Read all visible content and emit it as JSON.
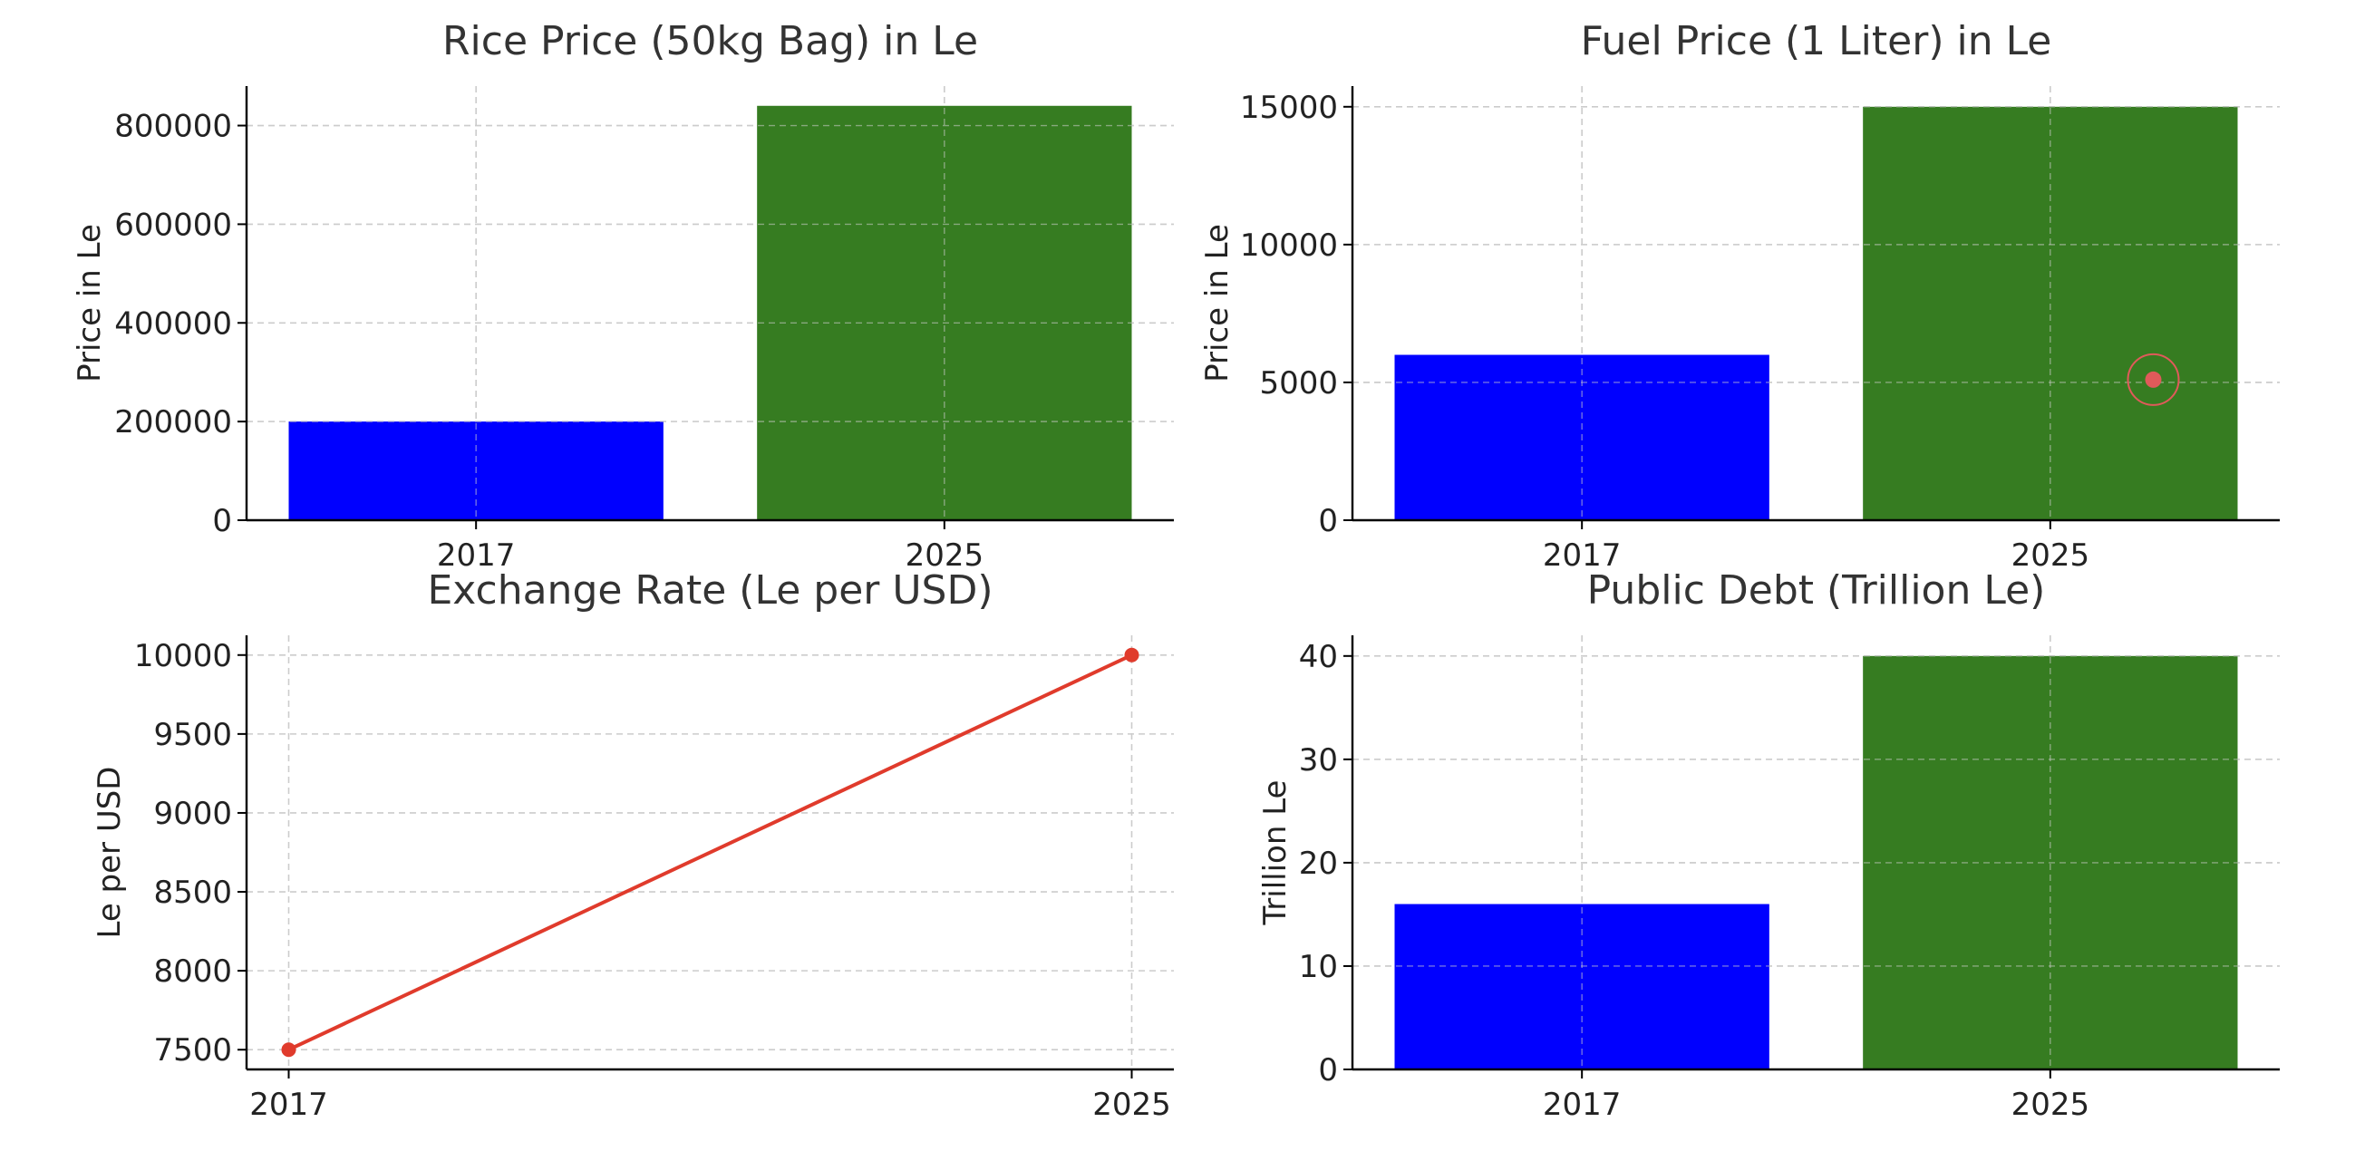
{
  "figure": {
    "background": "#ffffff",
    "grid": true,
    "grid_color": "#cccccc",
    "axis_color": "#000000"
  },
  "chart_data": [
    {
      "type": "bar",
      "title": "Rice Price (50kg Bag) in Le",
      "xlabel": "",
      "ylabel": "Price in Le",
      "categories": [
        "2017",
        "2025"
      ],
      "values": [
        200000,
        840000
      ],
      "colors": [
        "#0000ff",
        "#367c21"
      ],
      "ylim": [
        0,
        880000
      ],
      "yticks": [
        0,
        200000,
        400000,
        600000,
        800000
      ],
      "ytick_labels": [
        "0",
        "200000",
        "400000",
        "600000",
        "800000"
      ],
      "grid": true
    },
    {
      "type": "bar",
      "title": "Fuel Price (1 Liter) in Le",
      "xlabel": "",
      "ylabel": "Price in Le",
      "categories": [
        "2017",
        "2025"
      ],
      "values": [
        6000,
        15000
      ],
      "colors": [
        "#0000ff",
        "#367c21"
      ],
      "ylim": [
        0,
        15750
      ],
      "yticks": [
        0,
        5000,
        10000,
        15000
      ],
      "ytick_labels": [
        "0",
        "5000",
        "10000",
        "15000"
      ],
      "grid": true
    },
    {
      "type": "line",
      "title": "Exchange Rate (Le per USD)",
      "xlabel": "",
      "ylabel": "Le per USD",
      "x": [
        "2017",
        "2025"
      ],
      "values": [
        7500,
        10000
      ],
      "color": "#e03b2c",
      "marker": "circle",
      "xlim": [
        -0.4,
        8.4
      ],
      "x_positions": [
        0,
        8
      ],
      "ylim": [
        7375,
        10125
      ],
      "yticks": [
        7500,
        8000,
        8500,
        9000,
        9500,
        10000
      ],
      "ytick_labels": [
        "7500",
        "8000",
        "8500",
        "9000",
        "9500",
        "10000"
      ],
      "grid": true
    },
    {
      "type": "bar",
      "title": "Public Debt (Trillion Le)",
      "xlabel": "",
      "ylabel": "Trillion Le",
      "categories": [
        "2017",
        "2025"
      ],
      "values": [
        16,
        40
      ],
      "colors": [
        "#0000ff",
        "#367c21"
      ],
      "ylim": [
        0,
        42
      ],
      "yticks": [
        0,
        10,
        20,
        30,
        40
      ],
      "ytick_labels": [
        "0",
        "10",
        "20",
        "30",
        "40"
      ],
      "grid": true
    }
  ],
  "cursor_indicator": {
    "panel": 1,
    "x": 1.22,
    "y": 5100,
    "color": "#e05a5a"
  }
}
